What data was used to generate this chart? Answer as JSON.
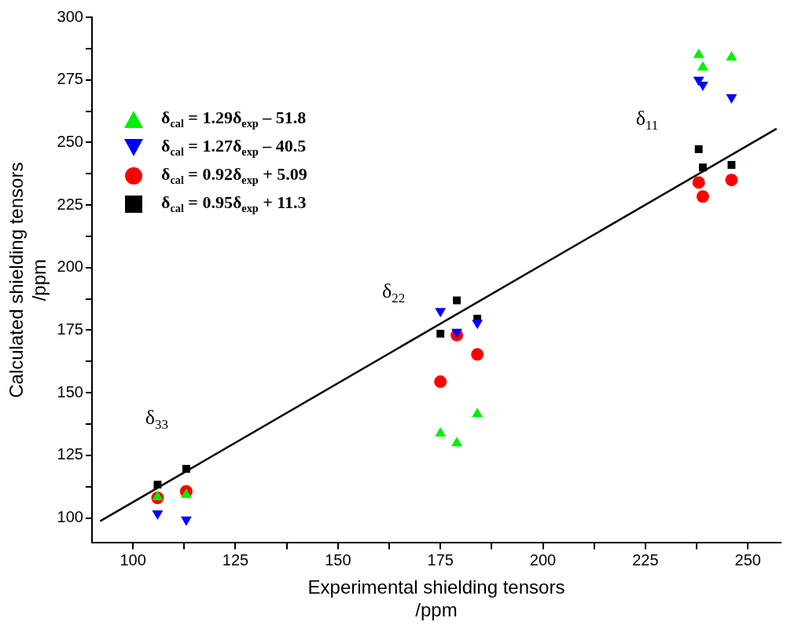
{
  "chart_data": {
    "type": "scatter",
    "xlabel": "Experimental shielding tensors\n/ppm",
    "ylabel": "Calculated shielding tensors\n/ppm",
    "x": [
      106,
      113,
      175,
      179,
      184,
      238,
      239,
      246
    ],
    "series": [
      {
        "name": "δ$_{cal}$ = 1.29δ$_{exp}$ – 51.8",
        "color": "#00ee00",
        "marker": "triangle",
        "values": [
          108.3,
          109.3,
          133.8,
          129.9,
          141.5,
          285,
          280,
          284
        ]
      },
      {
        "name": "δ$_{cal}$ = 1.27δ$_{exp}$ – 40.5",
        "color": "#0000ff",
        "marker": "triangle-down",
        "values": [
          101.7,
          99.3,
          182.6,
          174.3,
          177.9,
          275,
          273,
          268
        ]
      },
      {
        "name": "δ$_{cal}$ = 0.92δ$_{exp}$ + 5.09",
        "color": "#ff0000",
        "marker": "circle",
        "values": [
          108,
          110.6,
          154.4,
          173,
          165.3,
          234,
          228.4,
          235
        ]
      },
      {
        "name": "δ$_{cal}$ = 0.95δ$_{exp}$ + 11.3",
        "color": "#000000",
        "marker": "square",
        "values": [
          113.3,
          119.6,
          173.6,
          186.9,
          179.6,
          247.3,
          240,
          241
        ]
      },
      {
        "type": "line",
        "color": "#000000",
        "marker": "none",
        "x": [
          92,
          257
        ],
        "values": [
          98.7,
          255.5
        ]
      }
    ],
    "annotations": [
      "δ$_{33}$",
      "δ$_{22}$",
      "δ$_{11}$"
    ],
    "xlim": [
      90,
      258
    ],
    "xticks": [
      100,
      {
        "value": 112.5,
        "label": null
      },
      125,
      {
        "value": 137.5,
        "label": null
      },
      150,
      {
        "value": 162.5,
        "label": null
      },
      175,
      {
        "value": 187.5,
        "label": null
      },
      200,
      {
        "value": 212.5,
        "label": null
      },
      225,
      {
        "value": 237.5,
        "label": null
      },
      250
    ],
    "ylim": [
      90,
      300
    ],
    "yticks": [
      100,
      {
        "value": 112.5,
        "label": null
      },
      125,
      {
        "value": 137.5,
        "label": null
      },
      150,
      {
        "value": 162.5,
        "label": null
      },
      175,
      {
        "value": 187.5,
        "label": null
      },
      200,
      {
        "value": 212.5,
        "label": null
      },
      225,
      {
        "value": 237.5,
        "label": null
      },
      250,
      {
        "value": 262.5,
        "label": null
      },
      275,
      {
        "value": 287.5,
        "label": null
      },
      300
    ],
    "grid": false,
    "legend": "top left"
  }
}
